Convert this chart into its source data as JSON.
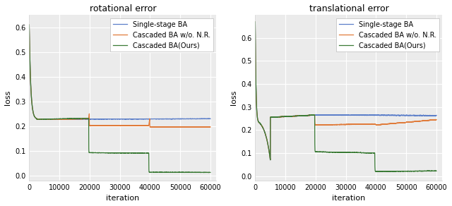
{
  "titles": [
    "rotational error",
    "translational error"
  ],
  "xlabel": "iteration",
  "ylabel": "loss",
  "legend_labels": [
    "Single-stage BA",
    "Cascaded BA w/o. N.R.",
    "Cascaded BA(Ours)"
  ],
  "colors": [
    "#5B7EC9",
    "#E07B3A",
    "#3A7A35"
  ],
  "xlim": [
    0,
    62000
  ],
  "rot_ylim": [
    -0.02,
    0.65
  ],
  "trans_ylim": [
    -0.02,
    0.7
  ],
  "xticks": [
    0,
    10000,
    20000,
    30000,
    40000,
    50000,
    60000
  ],
  "rot_yticks": [
    0.0,
    0.1,
    0.2,
    0.3,
    0.4,
    0.5,
    0.6
  ],
  "trans_yticks": [
    0.0,
    0.1,
    0.2,
    0.3,
    0.4,
    0.5,
    0.6
  ],
  "figsize": [
    6.4,
    2.92
  ],
  "dpi": 100,
  "bg_color": "#EBEBEB",
  "grid_color": "#FFFFFF",
  "linewidth": 0.9
}
